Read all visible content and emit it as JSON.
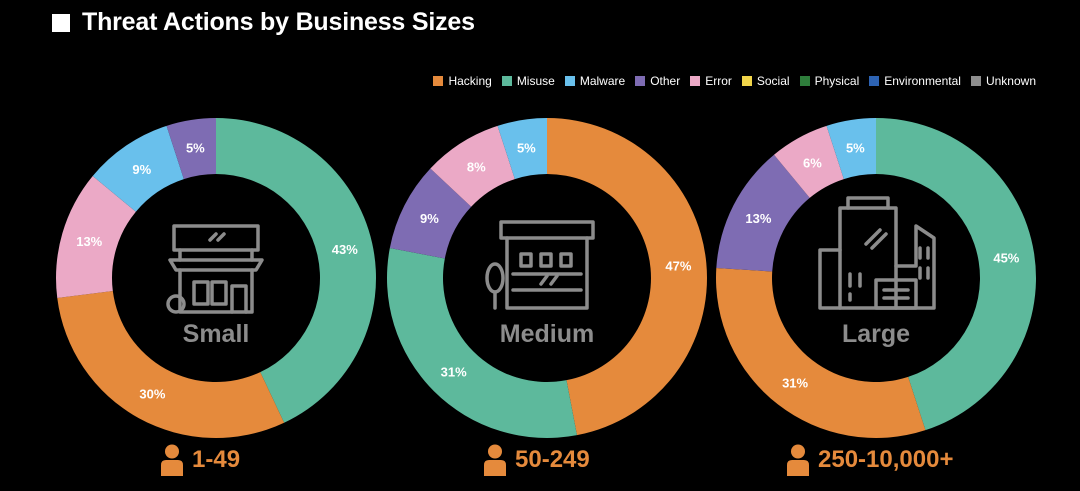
{
  "title": "Threat Actions by Business Sizes",
  "legend": [
    {
      "label": "Hacking",
      "color": "#E58A3C"
    },
    {
      "label": "Misuse",
      "color": "#5DB99C"
    },
    {
      "label": "Malware",
      "color": "#69C0EC"
    },
    {
      "label": "Other",
      "color": "#7E6CB3"
    },
    {
      "label": "Error",
      "color": "#EBA9C6"
    },
    {
      "label": "Social",
      "color": "#F1D54A"
    },
    {
      "label": "Physical",
      "color": "#2E7D3B"
    },
    {
      "label": "Environmental",
      "color": "#2D63B3"
    },
    {
      "label": "Unknown",
      "color": "#8E8E8E"
    }
  ],
  "chart_data": [
    {
      "type": "pie",
      "title": "Small",
      "employee_range": "1-49",
      "icon": "small-store-icon",
      "slices": [
        {
          "category": "Misuse",
          "value": 43
        },
        {
          "category": "Hacking",
          "value": 30
        },
        {
          "category": "Error",
          "value": 13
        },
        {
          "category": "Malware",
          "value": 9
        },
        {
          "category": "Other",
          "value": 5
        }
      ]
    },
    {
      "type": "pie",
      "title": "Medium",
      "employee_range": "50-249",
      "icon": "medium-building-icon",
      "slices": [
        {
          "category": "Hacking",
          "value": 47
        },
        {
          "category": "Misuse",
          "value": 31
        },
        {
          "category": "Other",
          "value": 9
        },
        {
          "category": "Error",
          "value": 8
        },
        {
          "category": "Malware",
          "value": 5
        }
      ]
    },
    {
      "type": "pie",
      "title": "Large",
      "employee_range": "250-10,000+",
      "icon": "large-office-icon",
      "slices": [
        {
          "category": "Misuse",
          "value": 45
        },
        {
          "category": "Hacking",
          "value": 31
        },
        {
          "category": "Other",
          "value": 13
        },
        {
          "category": "Error",
          "value": 6
        },
        {
          "category": "Malware",
          "value": 5
        }
      ]
    }
  ]
}
